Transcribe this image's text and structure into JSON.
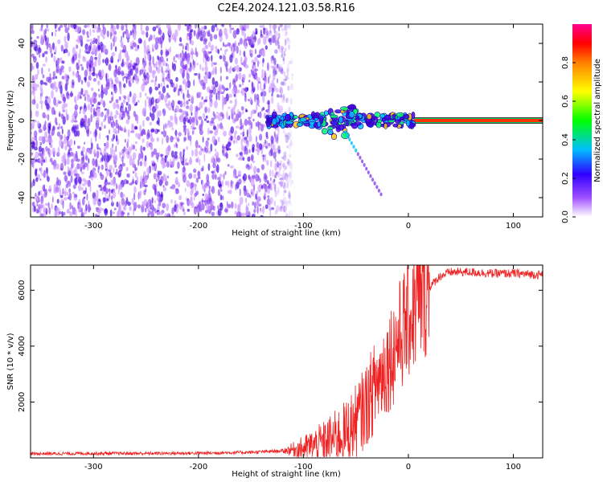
{
  "title": "C2E4.2024.121.03.58.R16",
  "colors": {
    "snr_line": "#ee2222",
    "axis": "#000000",
    "speckle_low": "#cc99ff",
    "speckle_mid": "#8844ee",
    "speckle_high": "#4400dd"
  },
  "chart_data": [
    {
      "type": "heatmap",
      "title": "",
      "xlabel": "Height of straight line (km)",
      "ylabel": "Frequency (Hz)",
      "xlim": [
        -360,
        128
      ],
      "ylim": [
        -50,
        50
      ],
      "x_ticks": [
        -300,
        -200,
        -100,
        0,
        100
      ],
      "y_ticks": [
        -40,
        -20,
        0,
        20,
        40
      ],
      "colorbar": {
        "label": "Normalized spectral amplitude",
        "range": [
          0.0,
          1.0
        ],
        "ticks": [
          0.0,
          0.2,
          0.4,
          0.6,
          0.8
        ],
        "colormap": [
          "#ffffff",
          "#a050ff",
          "#3000ff",
          "#00c0ff",
          "#00ff00",
          "#ffff00",
          "#ff8000",
          "#ff0000",
          "#ff0090"
        ]
      },
      "features": {
        "noise_region_x": [
          -360,
          -115
        ],
        "signal_trace_x": [
          -135,
          128
        ],
        "signal_frequency": 0,
        "steady_line_x": [
          5,
          128
        ]
      }
    },
    {
      "type": "line",
      "title": "",
      "xlabel": "Height of straight line (km)",
      "ylabel": "SNR (10 * v/v)",
      "xlim": [
        -360,
        128
      ],
      "ylim": [
        0,
        6900
      ],
      "x_ticks": [
        -300,
        -200,
        -100,
        0,
        100
      ],
      "y_ticks": [
        2000,
        4000,
        6000
      ],
      "series": [
        {
          "x": [
            -360,
            -300,
            -250,
            -200,
            -150,
            -120,
            -100,
            -80,
            -60,
            -50,
            -40,
            -30,
            -20,
            -10,
            0,
            10,
            20,
            30,
            40,
            60,
            80,
            100,
            128
          ],
          "y": [
            150,
            160,
            160,
            170,
            200,
            250,
            350,
            550,
            900,
            1300,
            1900,
            2700,
            3400,
            4200,
            5000,
            5600,
            6100,
            6500,
            6650,
            6650,
            6600,
            6600,
            6550
          ]
        }
      ]
    }
  ]
}
